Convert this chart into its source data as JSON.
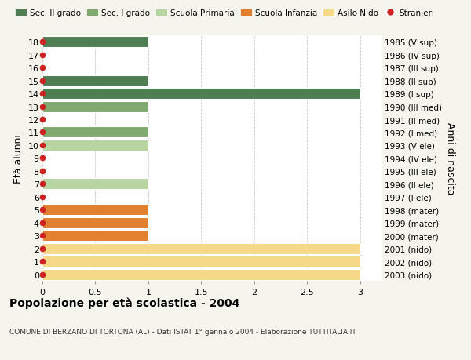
{
  "ages": [
    18,
    17,
    16,
    15,
    14,
    13,
    12,
    11,
    10,
    9,
    8,
    7,
    6,
    5,
    4,
    3,
    2,
    1,
    0
  ],
  "right_labels": [
    "1985 (V sup)",
    "1986 (IV sup)",
    "1987 (III sup)",
    "1988 (II sup)",
    "1989 (I sup)",
    "1990 (III med)",
    "1991 (II med)",
    "1992 (I med)",
    "1993 (V ele)",
    "1994 (IV ele)",
    "1995 (III ele)",
    "1996 (II ele)",
    "1997 (I ele)",
    "1998 (mater)",
    "1999 (mater)",
    "2000 (mater)",
    "2001 (nido)",
    "2002 (nido)",
    "2003 (nido)"
  ],
  "bar_values": [
    1,
    0,
    0,
    1,
    3,
    1,
    0,
    1,
    1,
    0,
    0,
    1,
    0,
    1,
    1,
    1,
    3,
    3,
    3
  ],
  "bar_colors": [
    "#4e7e52",
    "#4e7e52",
    "#4e7e52",
    "#4e7e52",
    "#4e7e52",
    "#80aa70",
    "#80aa70",
    "#80aa70",
    "#b8d4a0",
    "#b8d4a0",
    "#b8d4a0",
    "#b8d4a0",
    "#b8d4a0",
    "#e08030",
    "#e08030",
    "#e08030",
    "#f5d888",
    "#f5d888",
    "#f5d888"
  ],
  "stranieri_color": "#cc2222",
  "legend_labels": [
    "Sec. II grado",
    "Sec. I grado",
    "Scuola Primaria",
    "Scuola Infanzia",
    "Asilo Nido",
    "Stranieri"
  ],
  "legend_colors": [
    "#4e7e52",
    "#80aa70",
    "#b8d4a0",
    "#e08030",
    "#f5d888",
    "#cc2222"
  ],
  "xlim": [
    0,
    3.2
  ],
  "xticks": [
    0,
    0.5,
    1.0,
    1.5,
    2.0,
    2.5,
    3.0
  ],
  "xlabel_left": "Età alunni",
  "xlabel_right": "Anni di nascita",
  "title": "Popolazione per età scolastica - 2004",
  "subtitle": "COMUNE DI BERZANO DI TORTONA (AL) - Dati ISTAT 1° gennaio 2004 - Elaborazione TUTTITALIA.IT",
  "bg_color": "#f5f5ee",
  "plot_bg_color": "#ffffff",
  "grid_color": "#cccccc"
}
